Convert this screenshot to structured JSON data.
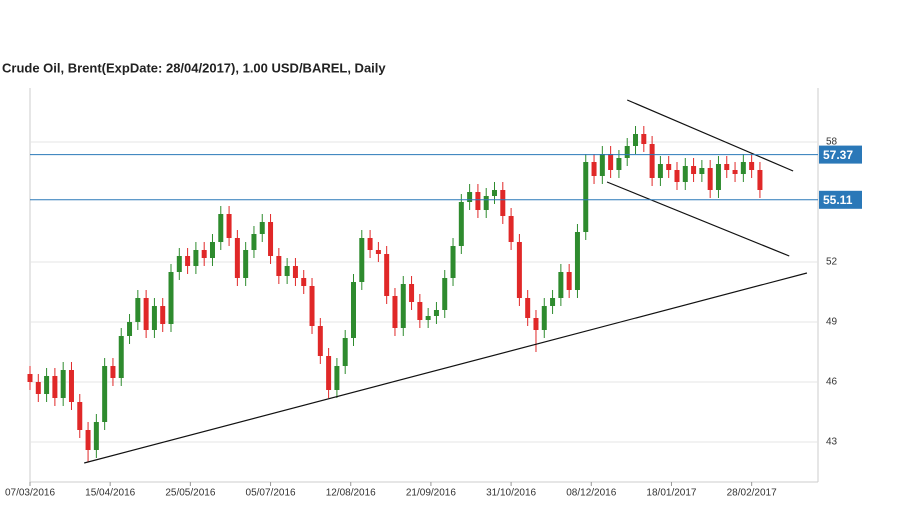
{
  "chart_data": {
    "type": "candlestick",
    "title": "Crude Oil, Brent(ExpDate: 28/04/2017), 1.00 USD/BAREL, Daily",
    "x": [
      0,
      3,
      6,
      9,
      12,
      15,
      18,
      21,
      24,
      27,
      30,
      33,
      36,
      39,
      42,
      45,
      48,
      51,
      54,
      57,
      60,
      63,
      66,
      69,
      72,
      75,
      78,
      81,
      84,
      87,
      90,
      93,
      96,
      99,
      102,
      105,
      108,
      111,
      114,
      117,
      120,
      123,
      126,
      129,
      132,
      135,
      138,
      141,
      144,
      147,
      150,
      153,
      156,
      159,
      162,
      165,
      168,
      171,
      174,
      177,
      180,
      183,
      186,
      189,
      192,
      195,
      198,
      201,
      204,
      207,
      210,
      213,
      216,
      219,
      222,
      225,
      228,
      231,
      234,
      237,
      240,
      243,
      246,
      249,
      252,
      255,
      258,
      261,
      264
    ],
    "open": [
      46.4,
      46.0,
      45.4,
      46.3,
      45.2,
      46.6,
      45.0,
      43.6,
      42.6,
      44.0,
      46.8,
      46.2,
      48.3,
      49.0,
      50.2,
      48.6,
      49.8,
      48.9,
      51.5,
      52.3,
      51.8,
      52.6,
      52.2,
      53.0,
      54.4,
      53.2,
      51.2,
      52.6,
      53.4,
      54.0,
      52.3,
      51.3,
      51.8,
      51.2,
      50.8,
      48.8,
      47.3,
      45.6,
      46.8,
      48.2,
      51.0,
      53.2,
      52.6,
      52.4,
      50.3,
      48.7,
      50.9,
      50.0,
      49.1,
      49.3,
      49.6,
      51.2,
      52.8,
      55.0,
      55.5,
      54.6,
      55.3,
      55.6,
      54.3,
      53.0,
      50.2,
      49.2,
      48.6,
      49.8,
      50.2,
      51.5,
      50.6,
      53.5,
      57.0,
      56.3,
      57.4,
      56.6,
      57.2,
      57.8,
      58.4,
      57.9,
      56.2,
      56.9,
      56.6,
      56.0,
      56.8,
      56.4,
      56.7,
      55.6,
      56.9,
      56.6,
      56.4,
      57.0,
      56.6
    ],
    "high": [
      46.8,
      46.4,
      46.7,
      46.7,
      47.0,
      47.0,
      45.4,
      44.0,
      44.4,
      47.2,
      47.2,
      48.7,
      49.4,
      50.6,
      50.6,
      50.2,
      50.2,
      51.9,
      52.7,
      52.7,
      53.0,
      53.0,
      53.4,
      54.8,
      54.8,
      53.6,
      53.0,
      53.8,
      54.4,
      54.4,
      52.7,
      52.2,
      52.2,
      51.6,
      51.2,
      49.2,
      47.7,
      47.2,
      48.6,
      51.4,
      53.6,
      53.6,
      53.0,
      52.8,
      50.7,
      51.3,
      51.3,
      50.4,
      49.7,
      50.0,
      51.6,
      53.2,
      55.4,
      55.9,
      55.9,
      55.7,
      56.0,
      56.0,
      54.7,
      53.4,
      50.6,
      49.6,
      50.2,
      50.6,
      51.9,
      51.9,
      53.9,
      57.4,
      57.4,
      57.8,
      57.8,
      57.6,
      58.2,
      58.8,
      58.8,
      58.3,
      57.3,
      57.3,
      57.0,
      57.2,
      57.2,
      57.1,
      57.1,
      57.3,
      57.3,
      57.0,
      57.4,
      57.4,
      57.0
    ],
    "low": [
      45.6,
      45.0,
      45.0,
      44.8,
      44.8,
      44.6,
      43.2,
      42.0,
      42.2,
      43.6,
      45.8,
      45.8,
      47.9,
      48.6,
      48.2,
      48.2,
      48.5,
      48.5,
      51.1,
      51.4,
      51.4,
      51.8,
      51.8,
      52.6,
      52.8,
      50.8,
      50.8,
      52.2,
      53.0,
      51.9,
      50.9,
      50.9,
      50.8,
      50.4,
      48.4,
      46.9,
      45.2,
      45.2,
      46.4,
      47.8,
      50.6,
      52.2,
      52.0,
      49.9,
      48.3,
      48.3,
      49.6,
      48.7,
      48.7,
      48.9,
      49.2,
      50.8,
      52.4,
      54.6,
      54.2,
      54.2,
      54.9,
      53.9,
      52.6,
      49.8,
      48.8,
      47.5,
      48.2,
      49.4,
      49.8,
      50.2,
      50.2,
      53.1,
      55.9,
      55.9,
      56.2,
      56.2,
      56.8,
      57.4,
      57.5,
      55.8,
      55.8,
      56.2,
      55.6,
      55.6,
      56.0,
      56.0,
      55.2,
      55.2,
      56.2,
      56.0,
      56.0,
      56.2,
      55.2
    ],
    "close": [
      46.0,
      45.4,
      46.3,
      45.2,
      46.6,
      45.0,
      43.6,
      42.6,
      44.0,
      46.8,
      46.2,
      48.3,
      49.0,
      50.2,
      48.6,
      49.8,
      48.9,
      51.5,
      52.3,
      51.8,
      52.6,
      52.2,
      53.0,
      54.4,
      53.2,
      51.2,
      52.6,
      53.4,
      54.0,
      52.3,
      51.3,
      51.8,
      51.2,
      50.8,
      48.8,
      47.3,
      45.6,
      46.8,
      48.2,
      51.0,
      53.2,
      52.6,
      52.4,
      50.3,
      48.7,
      50.9,
      50.0,
      49.1,
      49.3,
      49.6,
      51.2,
      52.8,
      55.0,
      55.5,
      54.6,
      55.3,
      55.6,
      54.3,
      53.0,
      50.2,
      49.2,
      48.6,
      49.8,
      50.2,
      51.5,
      50.6,
      53.5,
      57.0,
      56.3,
      57.4,
      56.6,
      57.2,
      57.8,
      58.4,
      57.9,
      56.2,
      56.9,
      56.6,
      56.0,
      56.8,
      56.4,
      56.7,
      55.6,
      56.9,
      56.6,
      56.4,
      57.0,
      56.6,
      55.6
    ],
    "up_color": "#2e8b2e",
    "down_color": "#e02828",
    "xlim": [
      0,
      285
    ],
    "ylim": [
      41,
      60.7
    ],
    "xticks": [
      {
        "value": 0,
        "label": "07/03/2016"
      },
      {
        "value": 29,
        "label": "15/04/2016"
      },
      {
        "value": 58,
        "label": "25/05/2016"
      },
      {
        "value": 87,
        "label": "05/07/2016"
      },
      {
        "value": 116,
        "label": "12/08/2016"
      },
      {
        "value": 145,
        "label": "21/09/2016"
      },
      {
        "value": 174,
        "label": "31/10/2016"
      },
      {
        "value": 203,
        "label": "08/12/2016"
      },
      {
        "value": 232,
        "label": "18/01/2017"
      },
      {
        "value": 261,
        "label": "28/02/2017"
      }
    ],
    "yticks": [
      43,
      46,
      49,
      52,
      58
    ],
    "grid": true,
    "hlines": [
      {
        "value": 57.37,
        "color": "#2a78b8"
      },
      {
        "value": 55.11,
        "color": "#2a78b8"
      }
    ],
    "trendlines": [
      {
        "x": [
          19.6,
          281
        ],
        "y": [
          41.95,
          51.45
        ]
      },
      {
        "x": [
          216,
          276
        ],
        "y": [
          60.1,
          56.55
        ]
      },
      {
        "x": [
          208.7,
          274.6
        ],
        "y": [
          56.0,
          52.3
        ]
      }
    ]
  }
}
